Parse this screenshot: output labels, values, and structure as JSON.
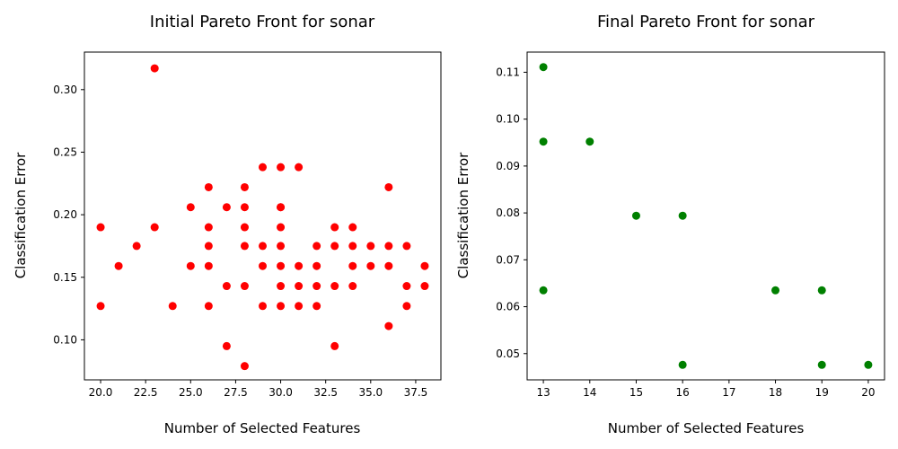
{
  "chart_data": [
    {
      "type": "scatter",
      "title": "Initial Pareto Front for sonar",
      "xlabel": "Number of Selected Features",
      "ylabel": "Classification Error",
      "xlim": [
        19.1,
        38.9
      ],
      "ylim": [
        0.068,
        0.33
      ],
      "xticks": [
        20.0,
        22.5,
        25.0,
        27.5,
        30.0,
        32.5,
        35.0,
        37.5
      ],
      "xtick_labels": [
        "20.0",
        "22.5",
        "25.0",
        "27.5",
        "30.0",
        "32.5",
        "35.0",
        "37.5"
      ],
      "yticks": [
        0.1,
        0.15,
        0.2,
        0.25,
        0.3
      ],
      "ytick_labels": [
        "0.10",
        "0.15",
        "0.20",
        "0.25",
        "0.30"
      ],
      "grid": false,
      "color": "#ff0000",
      "series": [
        {
          "x": [
            20,
            20,
            21,
            22,
            23,
            23,
            24,
            25,
            25,
            26,
            26,
            26,
            26,
            26,
            27,
            27,
            27,
            28,
            28,
            28,
            28,
            28,
            28,
            29,
            29,
            29,
            29,
            30,
            30,
            30,
            30,
            30,
            30,
            30,
            30,
            31,
            31,
            31,
            31,
            32,
            32,
            32,
            32,
            33,
            33,
            33,
            33,
            34,
            34,
            34,
            34,
            35,
            35,
            36,
            36,
            36,
            36,
            37,
            37,
            37,
            38,
            38
          ],
          "y": [
            0.19,
            0.127,
            0.159,
            0.175,
            0.317,
            0.19,
            0.127,
            0.206,
            0.159,
            0.222,
            0.19,
            0.175,
            0.159,
            0.127,
            0.206,
            0.143,
            0.095,
            0.222,
            0.206,
            0.19,
            0.175,
            0.143,
            0.079,
            0.238,
            0.175,
            0.159,
            0.127,
            0.238,
            0.206,
            0.19,
            0.175,
            0.159,
            0.143,
            0.127,
            0.206,
            0.238,
            0.159,
            0.143,
            0.127,
            0.175,
            0.159,
            0.143,
            0.127,
            0.19,
            0.175,
            0.143,
            0.095,
            0.19,
            0.175,
            0.159,
            0.143,
            0.175,
            0.159,
            0.222,
            0.175,
            0.159,
            0.111,
            0.175,
            0.143,
            0.127,
            0.159,
            0.143
          ]
        }
      ]
    },
    {
      "type": "scatter",
      "title": "Final Pareto Front for sonar",
      "xlabel": "Number of Selected Features",
      "ylabel": "Classification Error",
      "xlim": [
        12.65,
        20.35
      ],
      "ylim": [
        0.0444,
        0.1143
      ],
      "xticks": [
        13,
        14,
        15,
        16,
        17,
        18,
        19,
        20
      ],
      "xtick_labels": [
        "13",
        "14",
        "15",
        "16",
        "17",
        "18",
        "19",
        "20"
      ],
      "yticks": [
        0.05,
        0.06,
        0.07,
        0.08,
        0.09,
        0.1,
        0.11
      ],
      "ytick_labels": [
        "0.05",
        "0.06",
        "0.07",
        "0.08",
        "0.09",
        "0.10",
        "0.11"
      ],
      "grid": false,
      "color": "#008000",
      "series": [
        {
          "x": [
            13,
            13,
            13,
            14,
            15,
            16,
            16,
            18,
            19,
            19,
            20
          ],
          "y": [
            0.1111,
            0.0952,
            0.0635,
            0.0952,
            0.0794,
            0.0794,
            0.0476,
            0.0635,
            0.0635,
            0.0476,
            0.0476
          ]
        }
      ]
    }
  ]
}
